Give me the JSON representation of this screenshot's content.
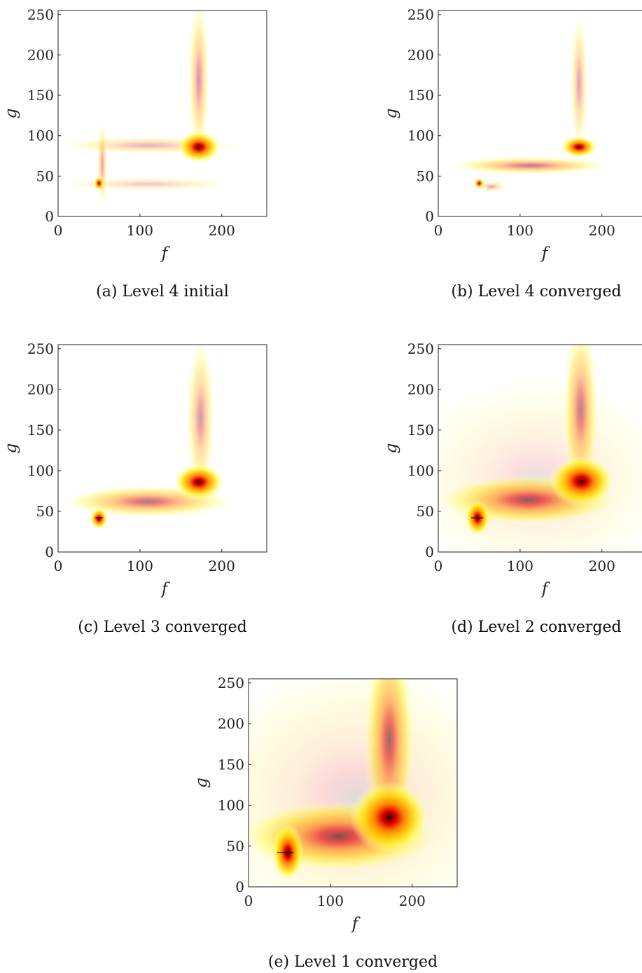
{
  "chart_data": [
    {
      "type": "heatmap",
      "caption": "(a) Level 4 initial",
      "xlabel": "f",
      "ylabel": "g",
      "xlim": [
        0,
        255
      ],
      "ylim": [
        0,
        255
      ],
      "xticks": [
        0,
        100,
        200
      ],
      "yticks": [
        0,
        50,
        100,
        150,
        200,
        250
      ],
      "colormap": [
        "#ffffe0",
        "#ffff40",
        "#ffd000",
        "#ff8000",
        "#e00000",
        "#3a0000"
      ],
      "blobs": [
        {
          "x": 172,
          "y": 86,
          "sx": 12,
          "sy": 9,
          "w": 1.0
        },
        {
          "x": 50,
          "y": 41,
          "sx": 3,
          "sy": 4,
          "w": 0.9
        },
        {
          "x": 172,
          "y": 170,
          "sx": 6,
          "sy": 45,
          "w": 0.35
        },
        {
          "x": 110,
          "y": 88,
          "sx": 50,
          "sy": 5,
          "w": 0.25
        },
        {
          "x": 110,
          "y": 40,
          "sx": 50,
          "sy": 4,
          "w": 0.18
        },
        {
          "x": 54,
          "y": 65,
          "sx": 3,
          "sy": 25,
          "w": 0.3
        }
      ],
      "crosshair": null
    },
    {
      "type": "heatmap",
      "caption": "(b) Level 4 converged",
      "xlabel": "f",
      "ylabel": "g",
      "xlim": [
        0,
        255
      ],
      "ylim": [
        0,
        255
      ],
      "xticks": [
        0,
        100,
        200
      ],
      "yticks": [
        0,
        50,
        100,
        150,
        200,
        250
      ],
      "colormap": [
        "#ffffe0",
        "#ffff40",
        "#ffd000",
        "#ff8000",
        "#e00000",
        "#3a0000"
      ],
      "blobs": [
        {
          "x": 172,
          "y": 86,
          "sx": 10,
          "sy": 6,
          "w": 1.0
        },
        {
          "x": 50,
          "y": 41,
          "sx": 3,
          "sy": 3,
          "w": 0.9
        },
        {
          "x": 112,
          "y": 63,
          "sx": 45,
          "sy": 5,
          "w": 0.45
        },
        {
          "x": 172,
          "y": 165,
          "sx": 5,
          "sy": 40,
          "w": 0.3
        },
        {
          "x": 65,
          "y": 37,
          "sx": 8,
          "sy": 3,
          "w": 0.3
        }
      ],
      "crosshair": null
    },
    {
      "type": "heatmap",
      "caption": "(c) Level 3 converged",
      "xlabel": "f",
      "ylabel": "g",
      "xlim": [
        0,
        255
      ],
      "ylim": [
        0,
        255
      ],
      "xticks": [
        0,
        100,
        200
      ],
      "yticks": [
        0,
        50,
        100,
        150,
        200,
        250
      ],
      "colormap": [
        "#ffffe0",
        "#ffff40",
        "#ffd000",
        "#ff8000",
        "#e00000",
        "#3a0000"
      ],
      "blobs": [
        {
          "x": 172,
          "y": 86,
          "sx": 14,
          "sy": 10,
          "w": 1.0
        },
        {
          "x": 50,
          "y": 41,
          "sx": 5,
          "sy": 6,
          "w": 1.0
        },
        {
          "x": 110,
          "y": 62,
          "sx": 48,
          "sy": 9,
          "w": 0.5
        },
        {
          "x": 174,
          "y": 165,
          "sx": 8,
          "sy": 45,
          "w": 0.35
        }
      ],
      "crosshair": {
        "x1": 45,
        "x2": 55,
        "y": 42
      }
    },
    {
      "type": "heatmap",
      "caption": "(d) Level 2 converged",
      "xlabel": "f",
      "ylabel": "g",
      "xlim": [
        0,
        255
      ],
      "ylim": [
        0,
        255
      ],
      "xticks": [
        0,
        100,
        200
      ],
      "yticks": [
        0,
        50,
        100,
        150,
        200,
        250
      ],
      "colormap": [
        "#ffffe0",
        "#ffff40",
        "#ffd000",
        "#ff8000",
        "#e00000",
        "#3a0000"
      ],
      "blobs": [
        {
          "x": 175,
          "y": 87,
          "sx": 18,
          "sy": 14,
          "w": 1.0
        },
        {
          "x": 48,
          "y": 42,
          "sx": 7,
          "sy": 10,
          "w": 1.0
        },
        {
          "x": 110,
          "y": 64,
          "sx": 50,
          "sy": 14,
          "w": 0.6
        },
        {
          "x": 174,
          "y": 175,
          "sx": 10,
          "sy": 50,
          "w": 0.45
        },
        {
          "x": 120,
          "y": 90,
          "sx": 80,
          "sy": 60,
          "w": 0.12
        }
      ],
      "crosshair": {
        "x1": 40,
        "x2": 55,
        "y": 42
      }
    },
    {
      "type": "heatmap",
      "caption": "(e) Level 1 converged",
      "xlabel": "f",
      "ylabel": "g",
      "xlim": [
        0,
        255
      ],
      "ylim": [
        0,
        255
      ],
      "xticks": [
        0,
        100,
        200
      ],
      "yticks": [
        0,
        50,
        100,
        150,
        200,
        250
      ],
      "colormap": [
        "#ffffe0",
        "#ffff40",
        "#ffd000",
        "#ff8000",
        "#e00000",
        "#3a0000"
      ],
      "blobs": [
        {
          "x": 172,
          "y": 85,
          "sx": 22,
          "sy": 20,
          "w": 1.0
        },
        {
          "x": 48,
          "y": 42,
          "sx": 9,
          "sy": 16,
          "w": 1.0
        },
        {
          "x": 110,
          "y": 62,
          "sx": 55,
          "sy": 20,
          "w": 0.65
        },
        {
          "x": 172,
          "y": 180,
          "sx": 14,
          "sy": 60,
          "w": 0.55
        },
        {
          "x": 130,
          "y": 110,
          "sx": 90,
          "sy": 80,
          "w": 0.15
        }
      ],
      "crosshair": {
        "x1": 35,
        "x2": 55,
        "y": 42
      }
    }
  ]
}
